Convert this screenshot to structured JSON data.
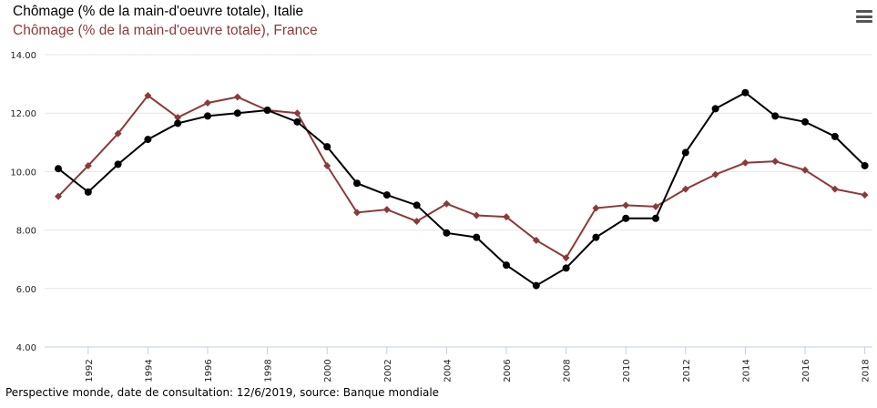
{
  "legend": [
    {
      "label": "Chômage (% de la main-d'oeuvre totale), Italie",
      "color": "#000000"
    },
    {
      "label": "Chômage (% de la main-d'oeuvre totale), France",
      "color": "#8B3A3A"
    }
  ],
  "menu_icon": "hamburger-menu-icon",
  "footer": "Perspective monde, date de consultation: 12/6/2019, source: Banque mondiale",
  "chart_data": {
    "type": "line",
    "x": [
      1991,
      1992,
      1993,
      1994,
      1995,
      1996,
      1997,
      1998,
      1999,
      2000,
      2001,
      2002,
      2003,
      2004,
      2005,
      2006,
      2007,
      2008,
      2009,
      2010,
      2011,
      2012,
      2013,
      2014,
      2015,
      2016,
      2017,
      2018
    ],
    "x_tick_labels": [
      "1992",
      "1994",
      "1996",
      "1998",
      "2000",
      "2002",
      "2004",
      "2006",
      "2008",
      "2010",
      "2012",
      "2014",
      "2016",
      "2018"
    ],
    "y_tick_labels": [
      "4.00",
      "6.00",
      "8.00",
      "10.00",
      "12.00",
      "14.00"
    ],
    "ylim": [
      4,
      14
    ],
    "grid": true,
    "legend_position": "top-left",
    "series": [
      {
        "name": "Chômage (% de la main-d'oeuvre totale), Italie",
        "color": "#000000",
        "marker": "circle",
        "values": [
          10.1,
          9.3,
          10.25,
          11.1,
          11.65,
          11.9,
          12.0,
          12.1,
          11.7,
          10.85,
          9.6,
          9.2,
          8.85,
          7.9,
          7.75,
          6.8,
          6.1,
          6.7,
          7.75,
          8.4,
          8.4,
          10.65,
          12.15,
          12.7,
          11.9,
          11.7,
          11.2,
          10.2
        ]
      },
      {
        "name": "Chômage (% de la main-d'oeuvre totale), France",
        "color": "#8B3A3A",
        "marker": "diamond",
        "values": [
          9.15,
          10.2,
          11.3,
          12.6,
          11.85,
          12.35,
          12.55,
          12.1,
          12.0,
          10.2,
          8.6,
          8.7,
          8.3,
          8.9,
          8.5,
          8.45,
          7.65,
          7.05,
          8.75,
          8.85,
          8.8,
          9.4,
          9.9,
          10.3,
          10.35,
          10.05,
          9.4,
          9.2
        ]
      }
    ]
  }
}
